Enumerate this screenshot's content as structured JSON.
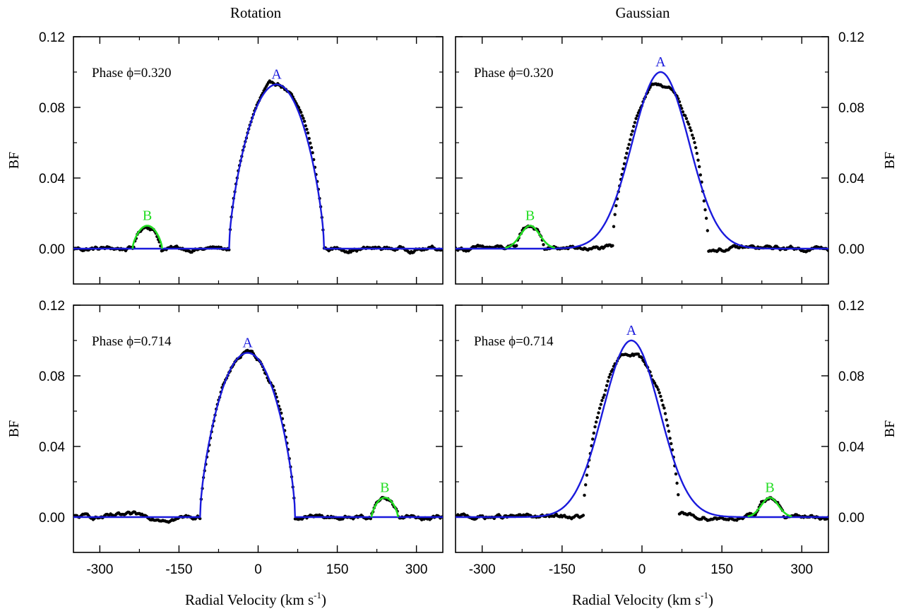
{
  "figure": {
    "column_titles": [
      "Rotation",
      "Gaussian"
    ],
    "xlabel": "Radial Velocity (km s",
    "xlabel_sup": "-1",
    "xlabel_close": ")",
    "ylabel": "BF"
  },
  "colors": {
    "data": "#000000",
    "primary_fit": "#1a1adc",
    "secondary_fit": "#22dd22",
    "primary_label": "#1a1adc",
    "secondary_label": "#22dd22",
    "frame": "#000000"
  },
  "chart_data": [
    {
      "type": "line",
      "column_title": "Rotation",
      "annotation": "Phase ϕ=0.320",
      "model": "rotation",
      "xlim": [
        -350,
        350
      ],
      "ylim": [
        -0.02,
        0.12
      ],
      "xticks": [
        -300,
        -150,
        0,
        150,
        300
      ],
      "yticks": [
        0.0,
        0.04,
        0.08,
        0.12
      ],
      "ytick_labels": [
        "0.00",
        "0.04",
        "0.08",
        "0.12"
      ],
      "ylabel": "BF",
      "components": [
        {
          "label": "A",
          "center": 35,
          "half_width": 90,
          "peak": 0.093
        },
        {
          "label": "B",
          "center": -210,
          "half_width": 28,
          "peak": 0.013
        }
      ],
      "noise_level": 0.003
    },
    {
      "type": "line",
      "column_title": "Gaussian",
      "annotation": "Phase ϕ=0.320",
      "model": "gaussian",
      "xlim": [
        -350,
        350
      ],
      "ylim": [
        -0.02,
        0.12
      ],
      "xticks": [
        -300,
        -150,
        0,
        150,
        300
      ],
      "yticks": [
        0.0,
        0.04,
        0.08,
        0.12
      ],
      "ytick_labels": [
        "0.00",
        "0.04",
        "0.08",
        "0.12"
      ],
      "ylabel": "BF",
      "components": [
        {
          "label": "A",
          "center": 35,
          "sigma": 53,
          "peak": 0.1
        },
        {
          "label": "B",
          "center": -210,
          "sigma": 18,
          "peak": 0.013
        }
      ],
      "noise_level": 0.003
    },
    {
      "type": "line",
      "column_title": "Rotation",
      "annotation": "Phase ϕ=0.714",
      "model": "rotation",
      "xlim": [
        -350,
        350
      ],
      "ylim": [
        -0.02,
        0.12
      ],
      "xticks": [
        -300,
        -150,
        0,
        150,
        300
      ],
      "yticks": [
        0.0,
        0.04,
        0.08,
        0.12
      ],
      "ytick_labels": [
        "0.00",
        "0.04",
        "0.08",
        "0.12"
      ],
      "ylabel": "BF",
      "components": [
        {
          "label": "A",
          "center": -20,
          "half_width": 90,
          "peak": 0.093
        },
        {
          "label": "B",
          "center": 240,
          "half_width": 25,
          "peak": 0.011
        }
      ],
      "noise_level": 0.003
    },
    {
      "type": "line",
      "column_title": "Gaussian",
      "annotation": "Phase ϕ=0.714",
      "model": "gaussian",
      "xlim": [
        -350,
        350
      ],
      "ylim": [
        -0.02,
        0.12
      ],
      "xticks": [
        -300,
        -150,
        0,
        150,
        300
      ],
      "yticks": [
        0.0,
        0.04,
        0.08,
        0.12
      ],
      "ytick_labels": [
        "0.00",
        "0.04",
        "0.08",
        "0.12"
      ],
      "ylabel": "BF",
      "components": [
        {
          "label": "A",
          "center": -20,
          "sigma": 53,
          "peak": 0.1
        },
        {
          "label": "B",
          "center": 240,
          "sigma": 16,
          "peak": 0.011
        }
      ],
      "noise_level": 0.003
    }
  ]
}
